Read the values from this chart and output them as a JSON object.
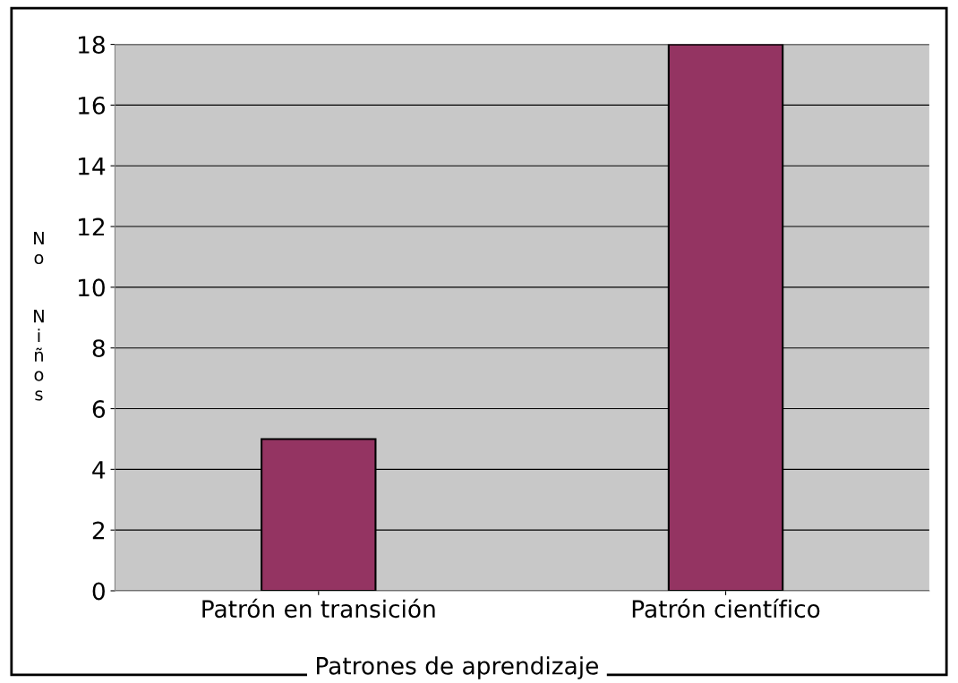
{
  "chart_data": {
    "type": "bar",
    "categories": [
      "Patrón en transición",
      "Patrón científico"
    ],
    "values": [
      5,
      18
    ],
    "color": "#943462",
    "xlabel": "Patrones de aprendizaje",
    "ylabel": "No Niños",
    "ylim": [
      0,
      18
    ],
    "yticks": [
      0,
      2,
      4,
      6,
      8,
      10,
      12,
      14,
      16,
      18
    ],
    "grid": "y",
    "legend": false
  }
}
